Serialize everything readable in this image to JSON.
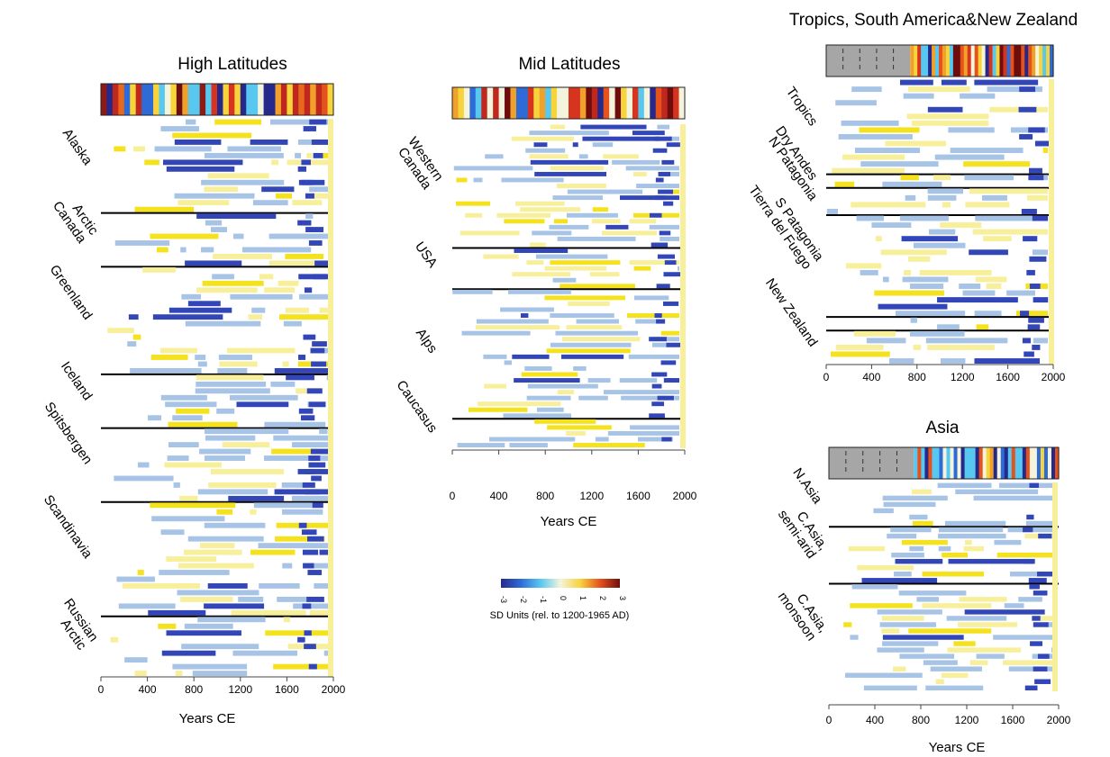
{
  "colors": {
    "bright_yellow": "#f5e21f",
    "pale_yellow": "#f7ef9a",
    "light_blue": "#a7c4e6",
    "dark_blue": "#3346b8",
    "mint": "#c6dfb0",
    "black": "#000000",
    "gray": "#a6a6a6"
  },
  "colorbar": {
    "label": "SD Units (rel. to 1200-1965 AD)",
    "ticks": [
      "-3",
      "-2",
      "-1",
      "0",
      "1",
      "2",
      "3"
    ],
    "stops": [
      "#26298c",
      "#2f6bd6",
      "#58c8f0",
      "#f4f4dc",
      "#f7d33c",
      "#e6521c",
      "#6e0d0d"
    ]
  },
  "chart_data": [
    {
      "type": "heatmap",
      "title": "High Latitudes",
      "xlabel": "Years CE",
      "xlim": [
        0,
        2000
      ],
      "xticks": [
        "0",
        "400",
        "800",
        "1200",
        "1600",
        "2000"
      ],
      "regions": [
        {
          "name": "Alaska",
          "rows": 14
        },
        {
          "name": "Arctic\nCanada",
          "rows": 8
        },
        {
          "name": "Greenland",
          "rows": 16
        },
        {
          "name": "Iceland",
          "rows": 8
        },
        {
          "name": "Spitsbergen",
          "rows": 11
        },
        {
          "name": "Scandinavia",
          "rows": 17
        },
        {
          "name": "Russian\nArctic",
          "rows": 9
        }
      ]
    },
    {
      "type": "heatmap",
      "title": "Mid Latitudes",
      "xlabel": "Years CE",
      "xlim": [
        0,
        2000
      ],
      "xticks": [
        "0",
        "400",
        "800",
        "1200",
        "1600",
        "2000"
      ],
      "regions": [
        {
          "name": "Western\nCanada",
          "rows": 21
        },
        {
          "name": "USA",
          "rows": 7
        },
        {
          "name": "Alps",
          "rows": 22
        },
        {
          "name": "Caucasus",
          "rows": 5
        }
      ]
    },
    {
      "type": "heatmap",
      "title": "Tropics, South America&New Zealand",
      "xlabel": "",
      "xlim": [
        0,
        2000
      ],
      "xticks": [
        "0",
        "400",
        "800",
        "1200",
        "1600",
        "2000"
      ],
      "regions": [
        {
          "name": "Tropics",
          "rows": 14
        },
        {
          "name": "Dry Andes",
          "rows": 2
        },
        {
          "name": "N Patagonia",
          "rows": 4
        },
        {
          "name": "S Patagonia\nTierra del Fuego",
          "rows": 15
        },
        {
          "name": "",
          "rows": 2
        },
        {
          "name": "New Zealand",
          "rows": 5
        }
      ]
    },
    {
      "type": "heatmap",
      "title": "Asia",
      "xlabel": "Years CE",
      "xlim": [
        0,
        2000
      ],
      "xticks": [
        "0",
        "400",
        "800",
        "1200",
        "1600",
        "2000"
      ],
      "regions": [
        {
          "name": "N.Asia",
          "rows": 7
        },
        {
          "name": "C.Asia,\nsemi-arid",
          "rows": 9
        },
        {
          "name": "C.Asia,\nmonsoon",
          "rows": 17
        }
      ]
    }
  ]
}
